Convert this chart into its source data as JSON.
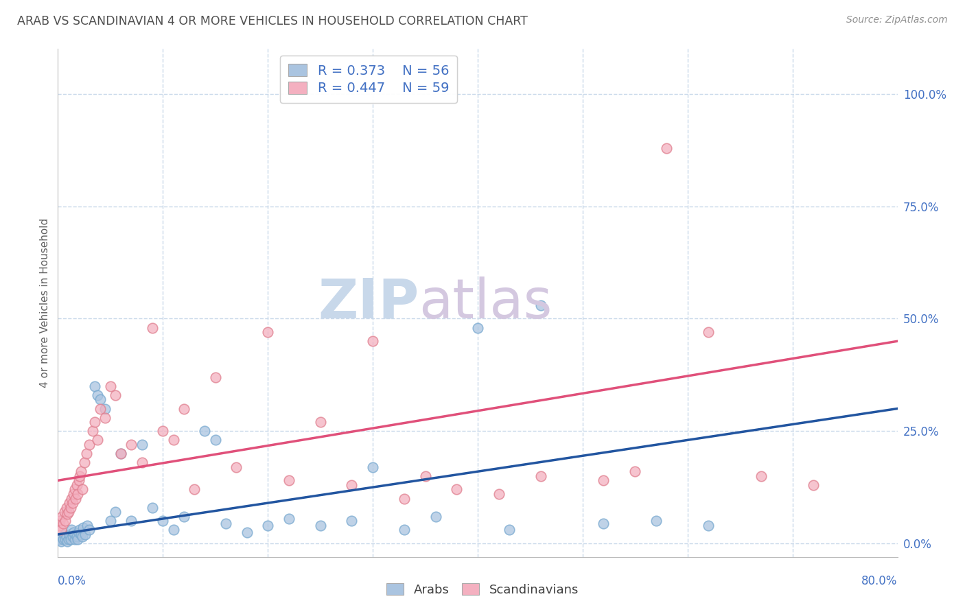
{
  "title": "ARAB VS SCANDINAVIAN 4 OR MORE VEHICLES IN HOUSEHOLD CORRELATION CHART",
  "source": "Source: ZipAtlas.com",
  "ylabel": "4 or more Vehicles in Household",
  "ytick_values": [
    0,
    25,
    50,
    75,
    100
  ],
  "xmin": 0,
  "xmax": 80,
  "ymin": -3,
  "ymax": 110,
  "legend_arab_r": "0.373",
  "legend_arab_n": "56",
  "legend_scand_r": "0.447",
  "legend_scand_n": "59",
  "arab_color": "#aac4e0",
  "arab_edge_color": "#7aaad0",
  "arab_line_color": "#2255a0",
  "scand_color": "#f4b0c0",
  "scand_edge_color": "#e08090",
  "scand_line_color": "#e0507a",
  "watermark_zip_color": "#c8d8ea",
  "watermark_atlas_color": "#d4c8e0",
  "background_color": "#ffffff",
  "grid_color": "#c8d8ea",
  "title_color": "#505050",
  "axis_label_color": "#4472c4",
  "tick_label_color": "#4472c4",
  "arab_line_start_y": 2.0,
  "arab_line_end_y": 30.0,
  "scand_line_start_y": 14.0,
  "scand_line_end_y": 45.0,
  "arab_scatter_x": [
    0.2,
    0.3,
    0.4,
    0.5,
    0.6,
    0.7,
    0.8,
    0.9,
    1.0,
    1.1,
    1.2,
    1.3,
    1.4,
    1.5,
    1.6,
    1.7,
    1.8,
    1.9,
    2.0,
    2.1,
    2.2,
    2.3,
    2.4,
    2.6,
    2.8,
    3.0,
    3.5,
    3.8,
    4.0,
    4.5,
    5.0,
    5.5,
    6.0,
    7.0,
    8.0,
    9.0,
    10.0,
    11.0,
    12.0,
    14.0,
    15.0,
    16.0,
    18.0,
    20.0,
    22.0,
    25.0,
    28.0,
    30.0,
    33.0,
    36.0,
    40.0,
    43.0,
    46.0,
    52.0,
    57.0,
    62.0
  ],
  "arab_scatter_y": [
    1.0,
    0.5,
    1.5,
    1.0,
    2.0,
    1.0,
    1.5,
    0.5,
    1.0,
    2.0,
    1.0,
    3.0,
    1.5,
    2.5,
    1.0,
    2.0,
    1.5,
    1.0,
    2.5,
    3.0,
    2.0,
    1.5,
    3.5,
    2.0,
    4.0,
    3.0,
    35.0,
    33.0,
    32.0,
    30.0,
    5.0,
    7.0,
    20.0,
    5.0,
    22.0,
    8.0,
    5.0,
    3.0,
    6.0,
    25.0,
    23.0,
    4.5,
    2.5,
    4.0,
    5.5,
    4.0,
    5.0,
    17.0,
    3.0,
    6.0,
    48.0,
    3.0,
    53.0,
    4.5,
    5.0,
    4.0
  ],
  "scand_scatter_x": [
    0.1,
    0.2,
    0.3,
    0.4,
    0.5,
    0.6,
    0.7,
    0.8,
    0.9,
    1.0,
    1.1,
    1.2,
    1.3,
    1.4,
    1.5,
    1.6,
    1.7,
    1.8,
    1.9,
    2.0,
    2.1,
    2.2,
    2.3,
    2.5,
    2.7,
    3.0,
    3.3,
    3.5,
    3.8,
    4.0,
    4.5,
    5.0,
    5.5,
    6.0,
    7.0,
    8.0,
    9.0,
    10.0,
    11.0,
    12.0,
    13.0,
    15.0,
    17.0,
    20.0,
    22.0,
    25.0,
    28.0,
    30.0,
    33.0,
    35.0,
    38.0,
    42.0,
    46.0,
    52.0,
    55.0,
    58.0,
    62.0,
    67.0,
    72.0
  ],
  "scand_scatter_y": [
    4.0,
    5.0,
    3.0,
    6.0,
    4.5,
    7.0,
    5.0,
    8.0,
    6.5,
    7.0,
    9.0,
    8.0,
    10.0,
    9.0,
    11.0,
    12.0,
    10.0,
    13.0,
    11.0,
    14.0,
    15.0,
    16.0,
    12.0,
    18.0,
    20.0,
    22.0,
    25.0,
    27.0,
    23.0,
    30.0,
    28.0,
    35.0,
    33.0,
    20.0,
    22.0,
    18.0,
    48.0,
    25.0,
    23.0,
    30.0,
    12.0,
    37.0,
    17.0,
    47.0,
    14.0,
    27.0,
    13.0,
    45.0,
    10.0,
    15.0,
    12.0,
    11.0,
    15.0,
    14.0,
    16.0,
    88.0,
    47.0,
    15.0,
    13.0
  ]
}
